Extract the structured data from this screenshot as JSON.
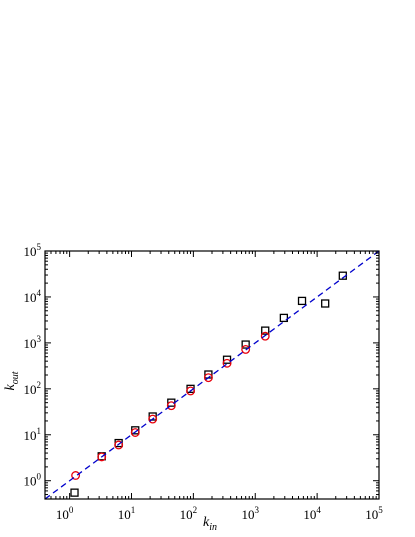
{
  "chart_data": {
    "type": "scatter",
    "title": "",
    "xlabel": {
      "base": "k",
      "sub": "in"
    },
    "ylabel": {
      "base": "k",
      "sub": "out"
    },
    "xscale": "log",
    "yscale": "log",
    "xlim": [
      0.4,
      100000
    ],
    "ylim": [
      0.4,
      100000
    ],
    "grid": false,
    "legend": "none",
    "x_ticks": [
      {
        "value": 1,
        "base": "10",
        "exp": "0"
      },
      {
        "value": 10,
        "base": "10",
        "exp": "1"
      },
      {
        "value": 100,
        "base": "10",
        "exp": "2"
      },
      {
        "value": 1000,
        "base": "10",
        "exp": "3"
      },
      {
        "value": 10000,
        "base": "10",
        "exp": "4"
      },
      {
        "value": 100000,
        "base": "10",
        "exp": "5"
      }
    ],
    "y_ticks": [
      {
        "value": 1,
        "base": "10",
        "exp": "0"
      },
      {
        "value": 10,
        "base": "10",
        "exp": "1"
      },
      {
        "value": 100,
        "base": "10",
        "exp": "2"
      },
      {
        "value": 1000,
        "base": "10",
        "exp": "3"
      },
      {
        "value": 10000,
        "base": "10",
        "exp": "4"
      },
      {
        "value": 100000,
        "base": "10",
        "exp": "5"
      }
    ],
    "series": [
      {
        "marker": "square",
        "color": "#000000",
        "points": [
          [
            1.2,
            0.55
          ],
          [
            3.3,
            3.4
          ],
          [
            6.2,
            6.6
          ],
          [
            11.5,
            12.5
          ],
          [
            22,
            25
          ],
          [
            44,
            50
          ],
          [
            90,
            100
          ],
          [
            175,
            205
          ],
          [
            350,
            430
          ],
          [
            700,
            920
          ],
          [
            1450,
            1850
          ],
          [
            2900,
            3500
          ],
          [
            5700,
            8200
          ],
          [
            13500,
            7200
          ],
          [
            26000,
            29000
          ]
        ]
      },
      {
        "marker": "circle",
        "color": "#e8000b",
        "points": [
          [
            1.25,
            1.3
          ],
          [
            3.3,
            3.3
          ],
          [
            6.2,
            6.0
          ],
          [
            11.5,
            11.2
          ],
          [
            22,
            22
          ],
          [
            44,
            43
          ],
          [
            90,
            90
          ],
          [
            175,
            175
          ],
          [
            350,
            360
          ],
          [
            700,
            720
          ],
          [
            1450,
            1400
          ]
        ]
      },
      {
        "marker": "line",
        "style": "dashed",
        "color": "#0000cc",
        "points": [
          [
            0.4,
            0.4
          ],
          [
            100000,
            100000
          ]
        ]
      }
    ]
  }
}
